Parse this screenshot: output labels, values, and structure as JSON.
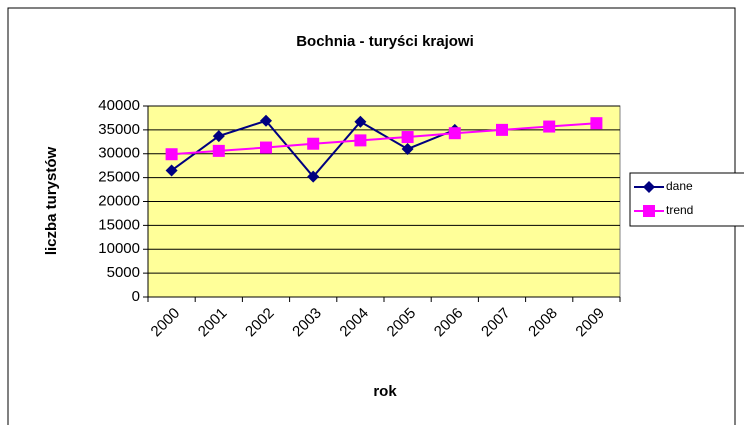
{
  "chart_data": {
    "type": "line",
    "title": "Bochnia - turyści krajowi",
    "x_label": "rok",
    "y_label": "liczba turystów",
    "categories": [
      "2000",
      "2001",
      "2002",
      "2003",
      "2004",
      "2005",
      "2006",
      "2007",
      "2008",
      "2009"
    ],
    "series": [
      {
        "name": "dane",
        "color": "#000080",
        "values": [
          26500,
          33700,
          36900,
          25200,
          36700,
          31000,
          35000,
          null,
          null,
          null
        ]
      },
      {
        "name": "trend",
        "color": "#ff00ff",
        "values": [
          29900,
          30600,
          31300,
          32100,
          32800,
          33500,
          34300,
          35000,
          35700,
          36400
        ]
      }
    ],
    "ylim": [
      0,
      40000
    ],
    "yticks": [
      0,
      5000,
      10000,
      15000,
      20000,
      25000,
      30000,
      35000,
      40000
    ],
    "grid": true,
    "legend": "right"
  }
}
